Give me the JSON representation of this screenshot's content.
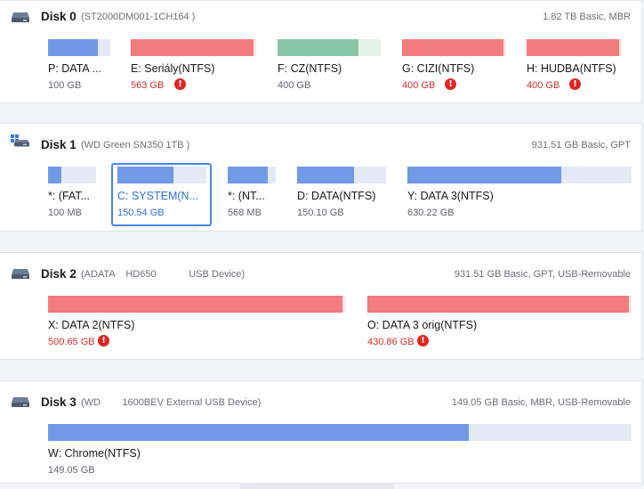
{
  "disks": [
    {
      "name": "Disk 0",
      "model": "(ST2000DM001-1CH164 )",
      "info": "1.82 TB Basic, MBR",
      "icon": "hdd-icon",
      "partitions": [
        {
          "label": "P:  DATA ...",
          "size": "100 GB",
          "color": "blue",
          "used": 0.8,
          "warning": false
        },
        {
          "label": "E: Seriály(NTFS)",
          "size": "563 GB",
          "color": "red",
          "used": 0.98,
          "warning": true
        },
        {
          "label": "F: CZ(NTFS)",
          "size": "400 GB",
          "color": "green",
          "used": 0.79,
          "warning": false
        },
        {
          "label": "G: CIZI(NTFS)",
          "size": "400 GB",
          "color": "red",
          "used": 0.98,
          "warning": true
        },
        {
          "label": "H: HUDBA(NTFS)",
          "size": "400 GB",
          "color": "red",
          "used": 0.98,
          "warning": true
        }
      ]
    },
    {
      "name": "Disk 1",
      "model": "(WD Green SN350 1TB )",
      "info": "931.51 GB Basic, GPT",
      "icon": "windows-disk-icon",
      "partitions": [
        {
          "label": "*: (FAT...",
          "size": "100 MB",
          "color": "blue",
          "used": 0.28,
          "warning": false
        },
        {
          "label": "C: SYSTEM(N...",
          "size": "150.54 GB",
          "color": "blue",
          "used": 0.62,
          "warning": false,
          "selected": true
        },
        {
          "label": "*: (NT...",
          "size": "568 MB",
          "color": "blue",
          "used": 0.82,
          "warning": false
        },
        {
          "label": "D: DATA(NTFS)",
          "size": "150.10 GB",
          "color": "blue",
          "used": 0.64,
          "warning": false
        },
        {
          "label": "Y: DATA 3(NTFS)",
          "size": "630.22 GB",
          "color": "blue",
          "used": 0.66,
          "warning": false
        }
      ]
    },
    {
      "name": "Disk 2",
      "model": "(ADATA    HD650            USB Device)",
      "info": "931.51 GB Basic, GPT, USB-Removable",
      "icon": "hdd-icon",
      "partitions": [
        {
          "label": "X: DATA 2(NTFS)",
          "size": "500.65 GB",
          "color": "red",
          "used": 0.99,
          "warning": true
        },
        {
          "label": "O: DATA 3 orig(NTFS)",
          "size": "430.86 GB",
          "color": "red",
          "used": 0.99,
          "warning": true
        }
      ]
    },
    {
      "name": "Disk 3",
      "model": "(WD        1600BEV External USB Device)",
      "info": "149.05 GB Basic, MBR, USB-Removable",
      "icon": "hdd-icon",
      "partitions": [
        {
          "label": "W: Chrome(NTFS)",
          "size": "149.05 GB",
          "color": "blue",
          "used": 0.72,
          "warning": false
        }
      ]
    }
  ],
  "colors": {
    "blue": "#7199e6",
    "red": "#f27b7b",
    "green": "#85c6a6",
    "warning": "#e02424",
    "selected": "#4a86e8"
  },
  "warning_glyph": "!"
}
